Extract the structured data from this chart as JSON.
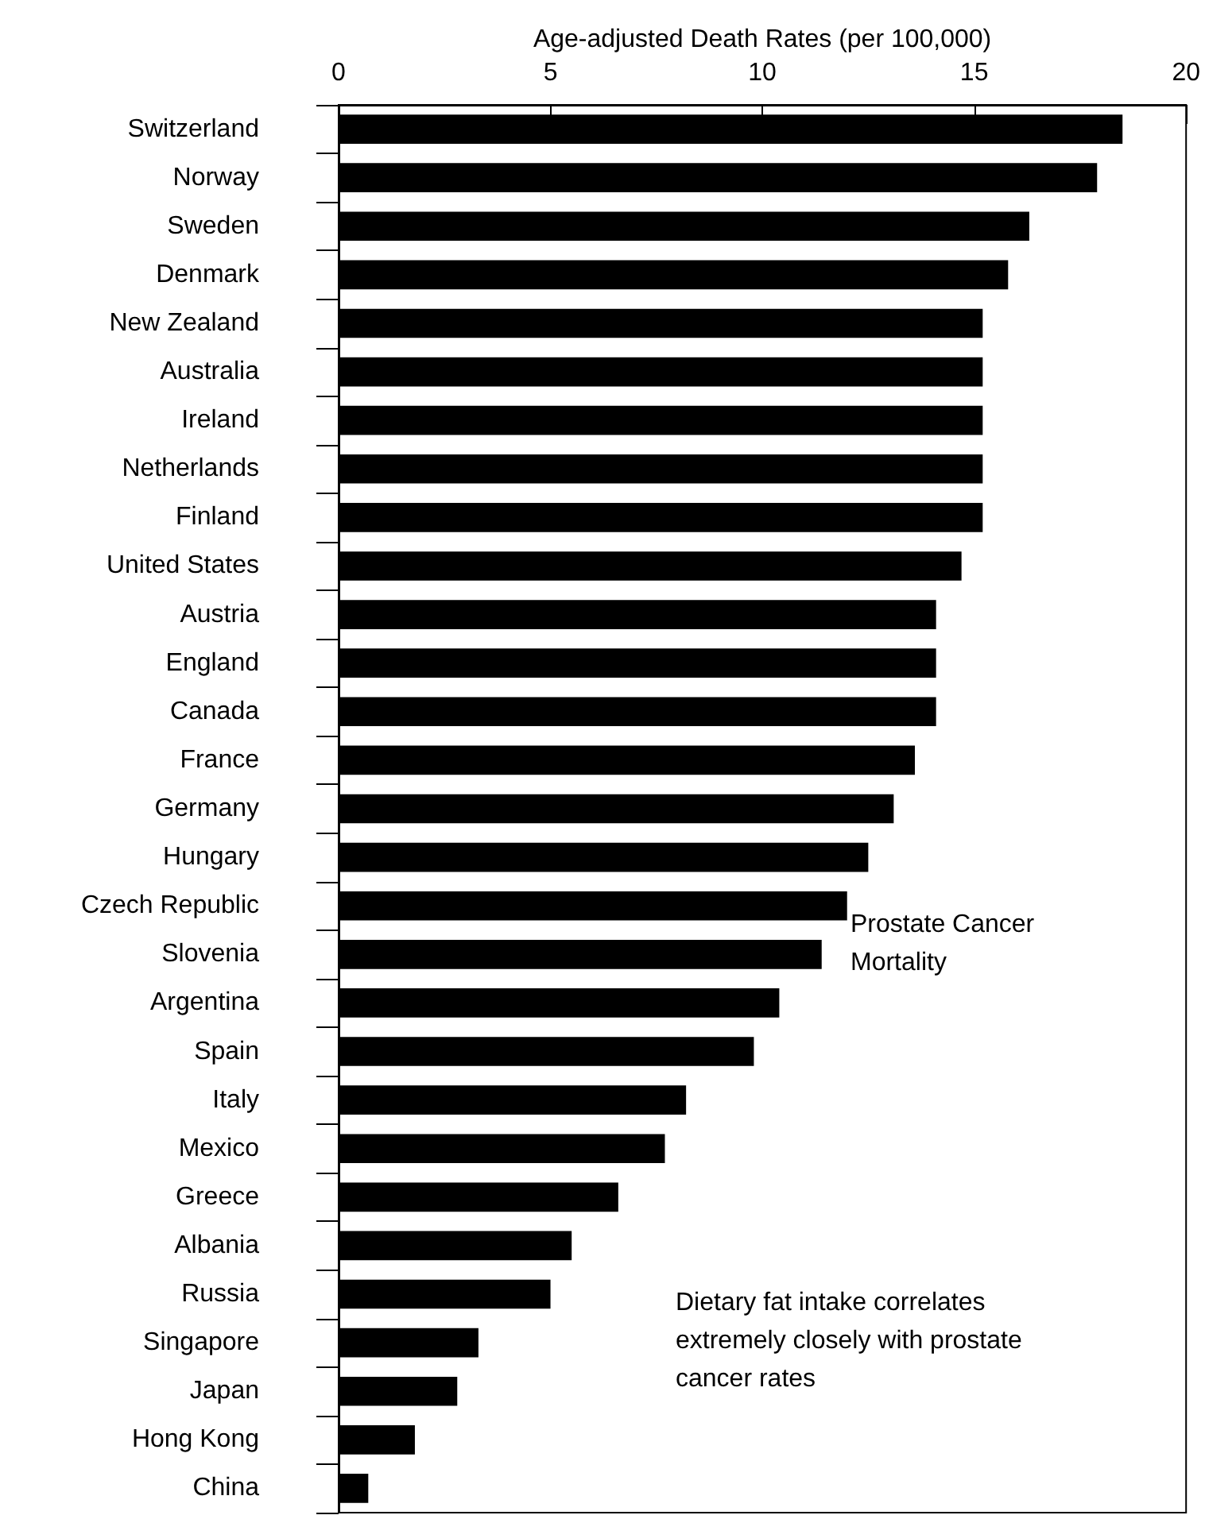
{
  "chart_data": {
    "type": "bar",
    "orientation": "horizontal",
    "xlabel": "Age-adjusted Death Rates (per 100,000)",
    "categories": [
      "Switzerland",
      "Norway",
      "Sweden",
      "Denmark",
      "New Zealand",
      "Australia",
      "Ireland",
      "Netherlands",
      "Finland",
      "United States",
      "Austria",
      "England",
      "Canada",
      "France",
      "Germany",
      "Hungary",
      "Czech Republic",
      "Slovenia",
      "Argentina",
      "Spain",
      "Italy",
      "Mexico",
      "Greece",
      "Albania",
      "Russia",
      "Singapore",
      "Japan",
      "Hong Kong",
      "China"
    ],
    "values": [
      18.5,
      17.9,
      16.3,
      15.8,
      15.2,
      15.2,
      15.2,
      15.2,
      15.2,
      14.7,
      14.1,
      14.1,
      14.1,
      13.6,
      13.1,
      12.5,
      12.0,
      11.4,
      10.4,
      9.8,
      8.2,
      7.7,
      6.6,
      5.5,
      5.0,
      3.3,
      2.8,
      1.8,
      0.7
    ],
    "color": "#000000",
    "xlim": [
      0,
      20
    ],
    "xticks": [
      0,
      5,
      10,
      15,
      20
    ],
    "grid": false,
    "annotations": [
      "Prostate Cancer\nMortality",
      "Dietary fat intake correlates\nextremely closely with prostate\ncancer rates"
    ]
  }
}
